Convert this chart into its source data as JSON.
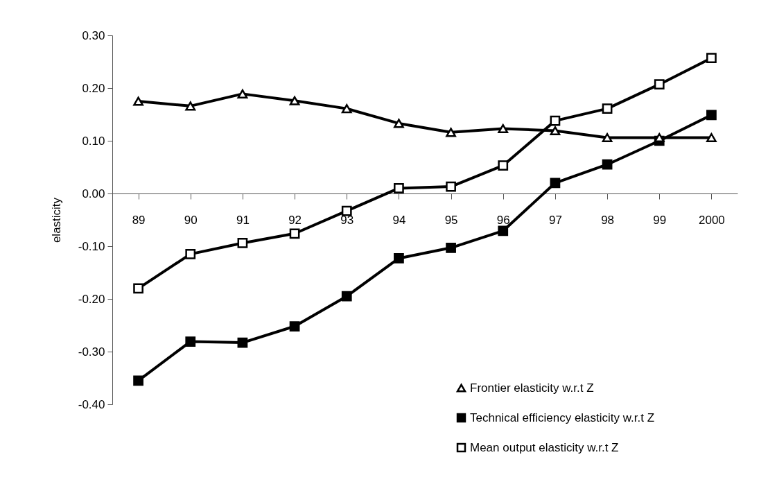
{
  "chart_data": {
    "type": "line",
    "ylabel": "elasticity",
    "categories": [
      "89",
      "90",
      "91",
      "92",
      "93",
      "94",
      "95",
      "96",
      "97",
      "98",
      "99",
      "2000"
    ],
    "series": [
      {
        "name": "Frontier elasticity w.r.t Z",
        "color": "#000000",
        "marker": "triangle",
        "values": [
          0.175,
          0.166,
          0.189,
          0.176,
          0.161,
          0.133,
          0.116,
          0.123,
          0.119,
          0.106,
          0.106,
          0.106
        ]
      },
      {
        "name": "Technical efficiency elasticity w.r.t Z",
        "color": "#000000",
        "marker": "square",
        "values": [
          -0.355,
          -0.281,
          -0.283,
          -0.252,
          -0.195,
          -0.123,
          -0.103,
          -0.071,
          0.02,
          0.055,
          0.1,
          0.149
        ]
      },
      {
        "name": "Mean output elasticity w.r.t Z",
        "color": "#000000",
        "marker": "square",
        "values": [
          -0.18,
          -0.115,
          -0.094,
          -0.076,
          -0.033,
          0.01,
          0.013,
          0.053,
          0.138,
          0.161,
          0.207,
          0.257
        ]
      }
    ],
    "ylim": [
      -0.4,
      0.3
    ],
    "yticks": [
      {
        "value": -0.4,
        "label": "-0.40"
      },
      {
        "value": -0.3,
        "label": "-0.30"
      },
      {
        "value": -0.2,
        "label": "-0.20"
      },
      {
        "value": -0.1,
        "label": "-0.10"
      },
      {
        "value": 0,
        "label": "0.00"
      },
      {
        "value": 0.1,
        "label": "0.10"
      },
      {
        "value": 0.2,
        "label": "0.20"
      },
      {
        "value": 0.3,
        "label": "0.30"
      }
    ],
    "grid": false,
    "legend": "bottom right",
    "line_style": "solid"
  }
}
